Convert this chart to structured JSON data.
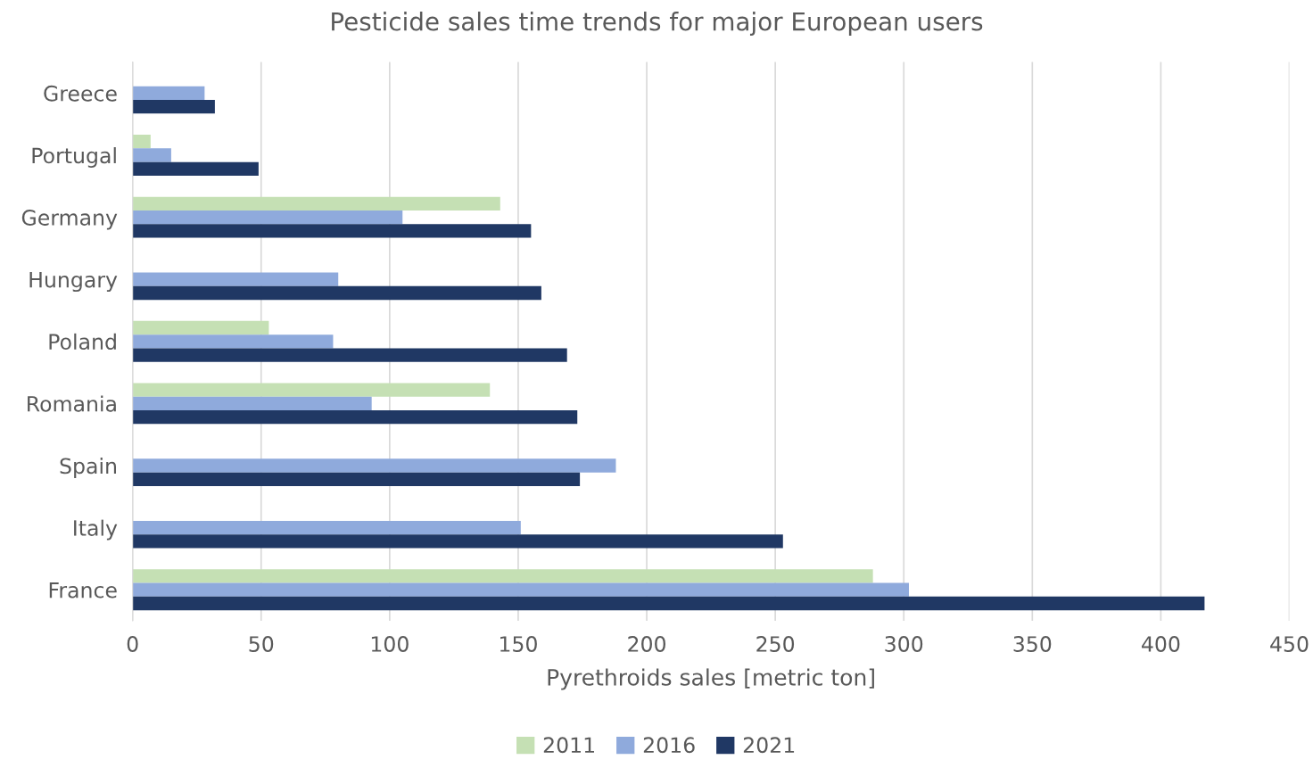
{
  "chart_data": {
    "type": "bar",
    "orientation": "horizontal",
    "title": "Pesticide sales time trends for major European users",
    "xlabel": "Pyrethroids sales [metric ton]",
    "categories": [
      "Greece",
      "Portugal",
      "Germany",
      "Hungary",
      "Poland",
      "Romania",
      "Spain",
      "Italy",
      "France"
    ],
    "series": [
      {
        "name": "2011",
        "color": "#c5e0b4",
        "values": [
          null,
          7,
          143,
          null,
          53,
          139,
          null,
          null,
          288
        ]
      },
      {
        "name": "2016",
        "color": "#8faadc",
        "values": [
          28,
          15,
          105,
          80,
          78,
          93,
          188,
          151,
          302
        ]
      },
      {
        "name": "2021",
        "color": "#203864",
        "values": [
          32,
          49,
          155,
          159,
          169,
          173,
          174,
          253,
          417
        ]
      }
    ],
    "xlim": [
      0,
      450
    ],
    "xticks": [
      0,
      50,
      100,
      150,
      200,
      250,
      300,
      350,
      400,
      450
    ],
    "grid": "x",
    "legend": "bottom"
  }
}
